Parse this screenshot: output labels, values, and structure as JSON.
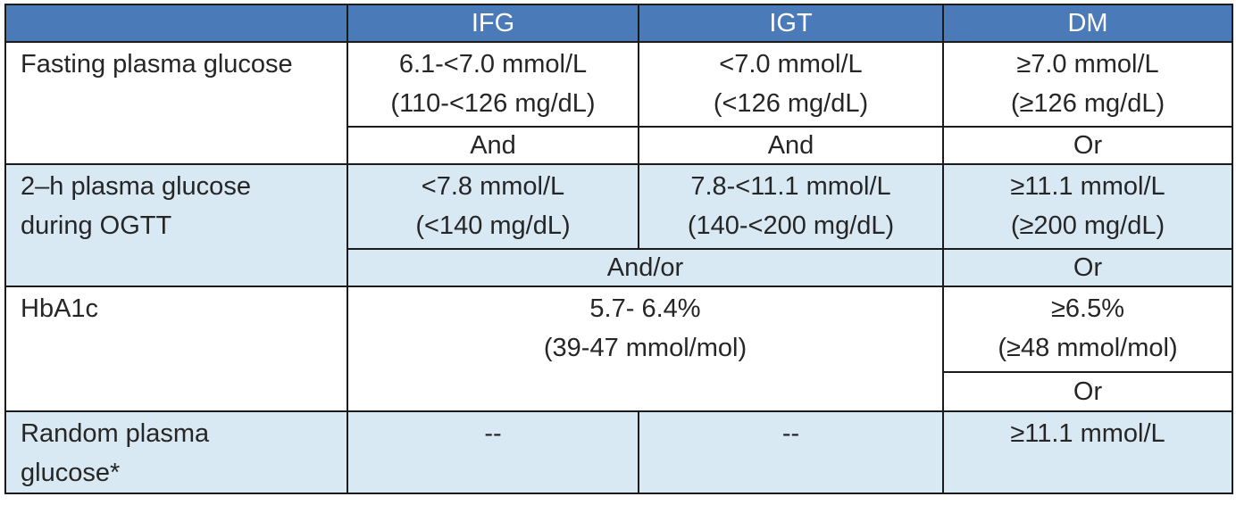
{
  "header": {
    "corner": "",
    "col_ifg": "IFG",
    "col_igt": "IGT",
    "col_dm": "DM"
  },
  "rows": {
    "fpg": {
      "label": "Fasting plasma glucose",
      "ifg": [
        "6.1-<7.0 mmol/L",
        "(110-<126 mg/dL)"
      ],
      "igt": [
        "<7.0 mmol/L",
        "(<126 mg/dL)"
      ],
      "dm": [
        "≥7.0 mmol/L",
        "(≥126 mg/dL)"
      ],
      "conj_ifg": "And",
      "conj_igt": "And",
      "conj_dm": "Or"
    },
    "ogtt": {
      "label": [
        "2–h plasma glucose",
        "during OGTT"
      ],
      "ifg": [
        "<7.8 mmol/L",
        "(<140 mg/dL)"
      ],
      "igt": [
        "7.8-<11.1 mmol/L",
        "(140-<200 mg/dL)"
      ],
      "dm": [
        "≥11.1 mmol/L",
        "(≥200 mg/dL)"
      ],
      "conj_ifg_igt": "And/or",
      "conj_dm": "Or"
    },
    "hba1c": {
      "label": "HbA1c",
      "ifg_igt": [
        "5.7- 6.4%",
        "(39-47 mmol/mol)"
      ],
      "dm": [
        "≥6.5%",
        "(≥48 mmol/mol)"
      ],
      "conj_dm": "Or"
    },
    "random": {
      "label": [
        "Random plasma",
        "glucose*"
      ],
      "ifg": "--",
      "igt": "--",
      "dm": "≥11.1 mmol/L"
    }
  },
  "colors": {
    "header_bg": "#4a7ab8",
    "header_text": "#ffffff",
    "row_blue": "#d9e9f4",
    "border": "#1b1b1b"
  }
}
